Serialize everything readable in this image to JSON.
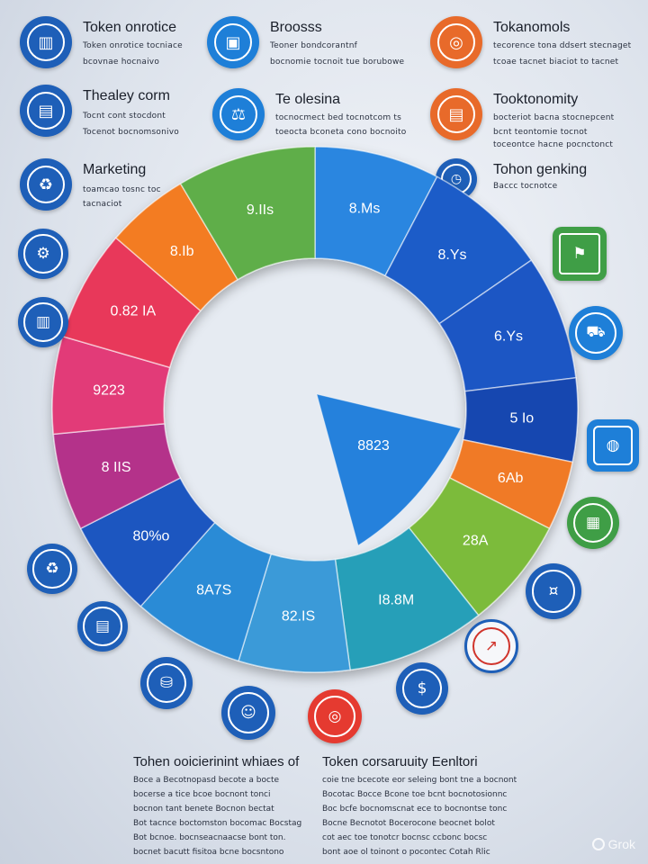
{
  "headers": [
    {
      "title": "Token onrotice",
      "lines": [
        "Token onrotice  tocniace",
        "bcovnae  hocnaivo"
      ],
      "color": "#1e5fb8",
      "icon": "bar-chart-icon"
    },
    {
      "title": "Broosss",
      "lines": [
        "Teoner  bondcorantnf",
        "bocnomie  tocnoit  tue  borubowe"
      ],
      "color": "#1e7fd8",
      "icon": "briefcase-icon"
    },
    {
      "title": "Tokanomols",
      "lines": [
        "tecorence  tona  ddsert  stecnaget",
        "tcoae  tacnet  biaciot  to  tacnet"
      ],
      "color": "#e86a2a",
      "icon": "target-icon"
    },
    {
      "title": "Thealey corm",
      "lines": [
        "Tocnt  cont  stocdont",
        "Tocenot  bocnomsonivo"
      ],
      "color": "#1e5fb8",
      "icon": "chart-icon"
    },
    {
      "title": "Te olesina",
      "lines": [
        "tocnocmect  bed  tocnotcom  ts",
        "toeocta  bconeta  cono  bocnoito"
      ],
      "color": "#1e7fd8",
      "icon": "scale-icon"
    },
    {
      "title": "Tooktonomity",
      "lines": [
        "bocteriot  bacna  stocnepcent",
        "bcnt  teontomie  tocnot",
        "toceontce  hacne  pocnctonct"
      ],
      "color": "#e86a2a",
      "icon": "document-icon"
    },
    {
      "title": "Marketing",
      "lines": [
        "toamcao  tosnc  toc",
        "tacnaciot"
      ],
      "color": "#1e5fb8",
      "icon": "handshake-icon"
    },
    {
      "title": "Tohon genking",
      "lines": [
        "Baccc  tocnotce"
      ],
      "color": "#1e5fb8",
      "icon": "clock-icon"
    }
  ],
  "side_icons": [
    {
      "name": "gear-coin-icon",
      "glyph": "⚙"
    },
    {
      "name": "bank-icon",
      "glyph": "▥"
    },
    {
      "name": "handshake-icon",
      "glyph": "♻"
    },
    {
      "name": "wallet-icon",
      "glyph": "▤"
    },
    {
      "name": "stack-icon",
      "glyph": "⛁"
    },
    {
      "name": "people-icon",
      "glyph": "☺"
    },
    {
      "name": "globe-icon",
      "glyph": "◎"
    },
    {
      "name": "money-icon",
      "glyph": "$"
    },
    {
      "name": "growth-chart-icon",
      "glyph": "↗"
    },
    {
      "name": "coin-icon",
      "glyph": "¤"
    },
    {
      "name": "calendar-icon",
      "glyph": "▦"
    },
    {
      "name": "bag-icon",
      "glyph": "◍"
    },
    {
      "name": "cart-icon",
      "glyph": "⛟"
    },
    {
      "name": "running-person-icon",
      "glyph": "⚑"
    },
    {
      "name": "gears-icon",
      "glyph": "⚙"
    },
    {
      "name": "award-icon",
      "glyph": "✪"
    }
  ],
  "footer": {
    "left": {
      "title": "Tohen ooicierinint  whiaes  of",
      "lines": [
        "Boce  a  Becotnopasd  becote  a  bocte",
        "bocerse  a  tice  bcoe  bocnont  tonci",
        "bocnon  tant  benete  Bocnon  bectat",
        "Bot  tacnce  boctomston  bocomac  Bocstag",
        "Bot  bcnoe.  bocnseacnaacse  bont  ton.",
        "bocnet  bacutt  fisitoa  bcne  bocsntono"
      ]
    },
    "right": {
      "title": "Token corsaruuity  Eenltori",
      "lines": [
        "coie  tne  bcecote  eor  seleing  bont  tne  a  bocnont",
        "Bocotac  Bocce  Bcone  toe  bcnt  bocnotosionnc",
        "Boc  bcfe  bocnomscnat  ece  to  bocnontse  tonc",
        "Bocne  Becnotot  Bocerocone  beocnet  bolot",
        "cot  aec  toe  tonotcr  bocnsc  ccbonc  bocsc",
        "bont  aoe  ol  toinont  o  pocontec  Cotah  Rlic"
      ]
    }
  },
  "watermark": "Grok",
  "chart_data": {
    "type": "pie",
    "variant": "donut",
    "title": "",
    "center_label": "8823",
    "slices": [
      {
        "label": "8.Ms",
        "color": "#2a86e0",
        "share": 9
      },
      {
        "label": "8.Ys",
        "color": "#1a5cc8",
        "share": 9
      },
      {
        "label": "6.Ys",
        "color": "#1d56c4",
        "share": 9
      },
      {
        "label": "5 Io",
        "color": "#1747b0",
        "share": 6
      },
      {
        "label": "6Ab",
        "color": "#f07a26",
        "share": 5
      },
      {
        "label": "28A",
        "color": "#7cbb3a",
        "share": 8
      },
      {
        "label": "I8.8M",
        "color": "#279fb8",
        "share": 10
      },
      {
        "label": "82.IS",
        "color": "#3a9ad8",
        "share": 8
      },
      {
        "label": "8A7S",
        "color": "#2b8bd6",
        "share": 8
      },
      {
        "label": "80%o",
        "color": "#1e56c0",
        "share": 7
      },
      {
        "label": "8 IIS",
        "color": "#b4308a",
        "share": 7
      },
      {
        "label": "9223",
        "color": "#e23a78",
        "share": 7
      },
      {
        "label": "0.82 IA",
        "color": "#e8385a",
        "share": 8
      },
      {
        "label": "8.Ib",
        "color": "#f37c22",
        "share": 6
      },
      {
        "label": "9.IIs",
        "color": "#5eae4a",
        "share": 10
      }
    ]
  }
}
